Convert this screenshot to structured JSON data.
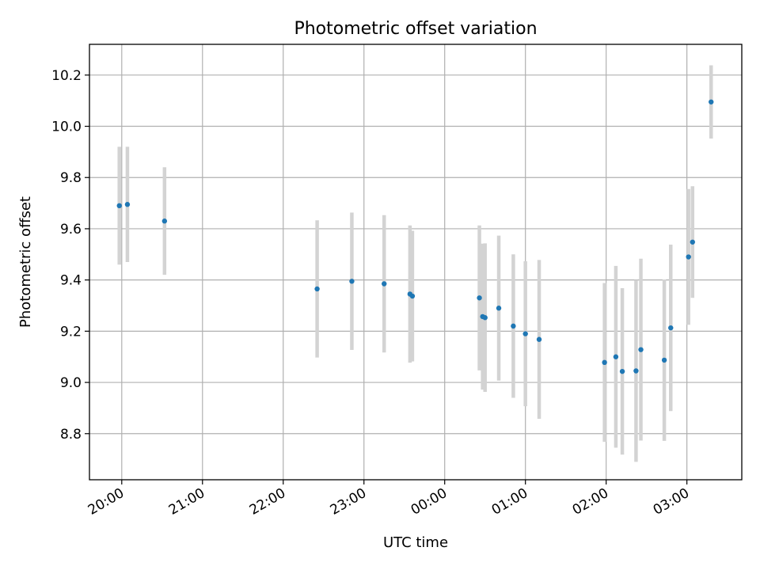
{
  "chart_data": {
    "type": "scatter",
    "title": "Photometric offset variation",
    "xlabel": "UTC time",
    "ylabel": "Photometric offset",
    "x_unit": "hours of UTC time (after 24:00, hours wrap past midnight)",
    "xlim": [
      19.6,
      27.68
    ],
    "ylim": [
      8.62,
      10.32
    ],
    "grid": true,
    "x_ticks": [
      {
        "value": 20,
        "label": "20:00"
      },
      {
        "value": 21,
        "label": "21:00"
      },
      {
        "value": 22,
        "label": "22:00"
      },
      {
        "value": 23,
        "label": "23:00"
      },
      {
        "value": 24,
        "label": "00:00"
      },
      {
        "value": 25,
        "label": "01:00"
      },
      {
        "value": 26,
        "label": "02:00"
      },
      {
        "value": 27,
        "label": "03:00"
      }
    ],
    "y_ticks": [
      {
        "value": 8.8,
        "label": "8.8"
      },
      {
        "value": 9.0,
        "label": "9.0"
      },
      {
        "value": 9.2,
        "label": "9.2"
      },
      {
        "value": 9.4,
        "label": "9.4"
      },
      {
        "value": 9.6,
        "label": "9.6"
      },
      {
        "value": 9.8,
        "label": "9.8"
      },
      {
        "value": 10.0,
        "label": "10.0"
      },
      {
        "value": 10.2,
        "label": "10.2"
      }
    ],
    "colors": {
      "point": "#1f77b4",
      "errorbar": "#d3d3d3"
    },
    "points": [
      {
        "x": 19.97,
        "y": 9.69,
        "err": 0.23
      },
      {
        "x": 20.07,
        "y": 9.695,
        "err": 0.225
      },
      {
        "x": 20.53,
        "y": 9.63,
        "err": 0.21
      },
      {
        "x": 22.42,
        "y": 9.365,
        "err": 0.268
      },
      {
        "x": 22.85,
        "y": 9.395,
        "err": 0.268
      },
      {
        "x": 23.25,
        "y": 9.385,
        "err": 0.268
      },
      {
        "x": 23.57,
        "y": 9.345,
        "err": 0.268
      },
      {
        "x": 23.6,
        "y": 9.337,
        "err": 0.255
      },
      {
        "x": 24.43,
        "y": 9.33,
        "err": 0.283
      },
      {
        "x": 24.47,
        "y": 9.257,
        "err": 0.285
      },
      {
        "x": 24.5,
        "y": 9.253,
        "err": 0.29
      },
      {
        "x": 24.67,
        "y": 9.29,
        "err": 0.283
      },
      {
        "x": 24.85,
        "y": 9.22,
        "err": 0.28
      },
      {
        "x": 25.0,
        "y": 9.19,
        "err": 0.283
      },
      {
        "x": 25.17,
        "y": 9.168,
        "err": 0.31
      },
      {
        "x": 25.98,
        "y": 9.078,
        "err": 0.31
      },
      {
        "x": 26.12,
        "y": 9.1,
        "err": 0.355
      },
      {
        "x": 26.2,
        "y": 9.043,
        "err": 0.325
      },
      {
        "x": 26.37,
        "y": 9.045,
        "err": 0.355
      },
      {
        "x": 26.43,
        "y": 9.128,
        "err": 0.355
      },
      {
        "x": 26.72,
        "y": 9.087,
        "err": 0.315
      },
      {
        "x": 26.8,
        "y": 9.213,
        "err": 0.325
      },
      {
        "x": 27.02,
        "y": 9.49,
        "err": 0.265
      },
      {
        "x": 27.07,
        "y": 9.548,
        "err": 0.218
      },
      {
        "x": 27.3,
        "y": 10.095,
        "err": 0.143
      }
    ]
  }
}
